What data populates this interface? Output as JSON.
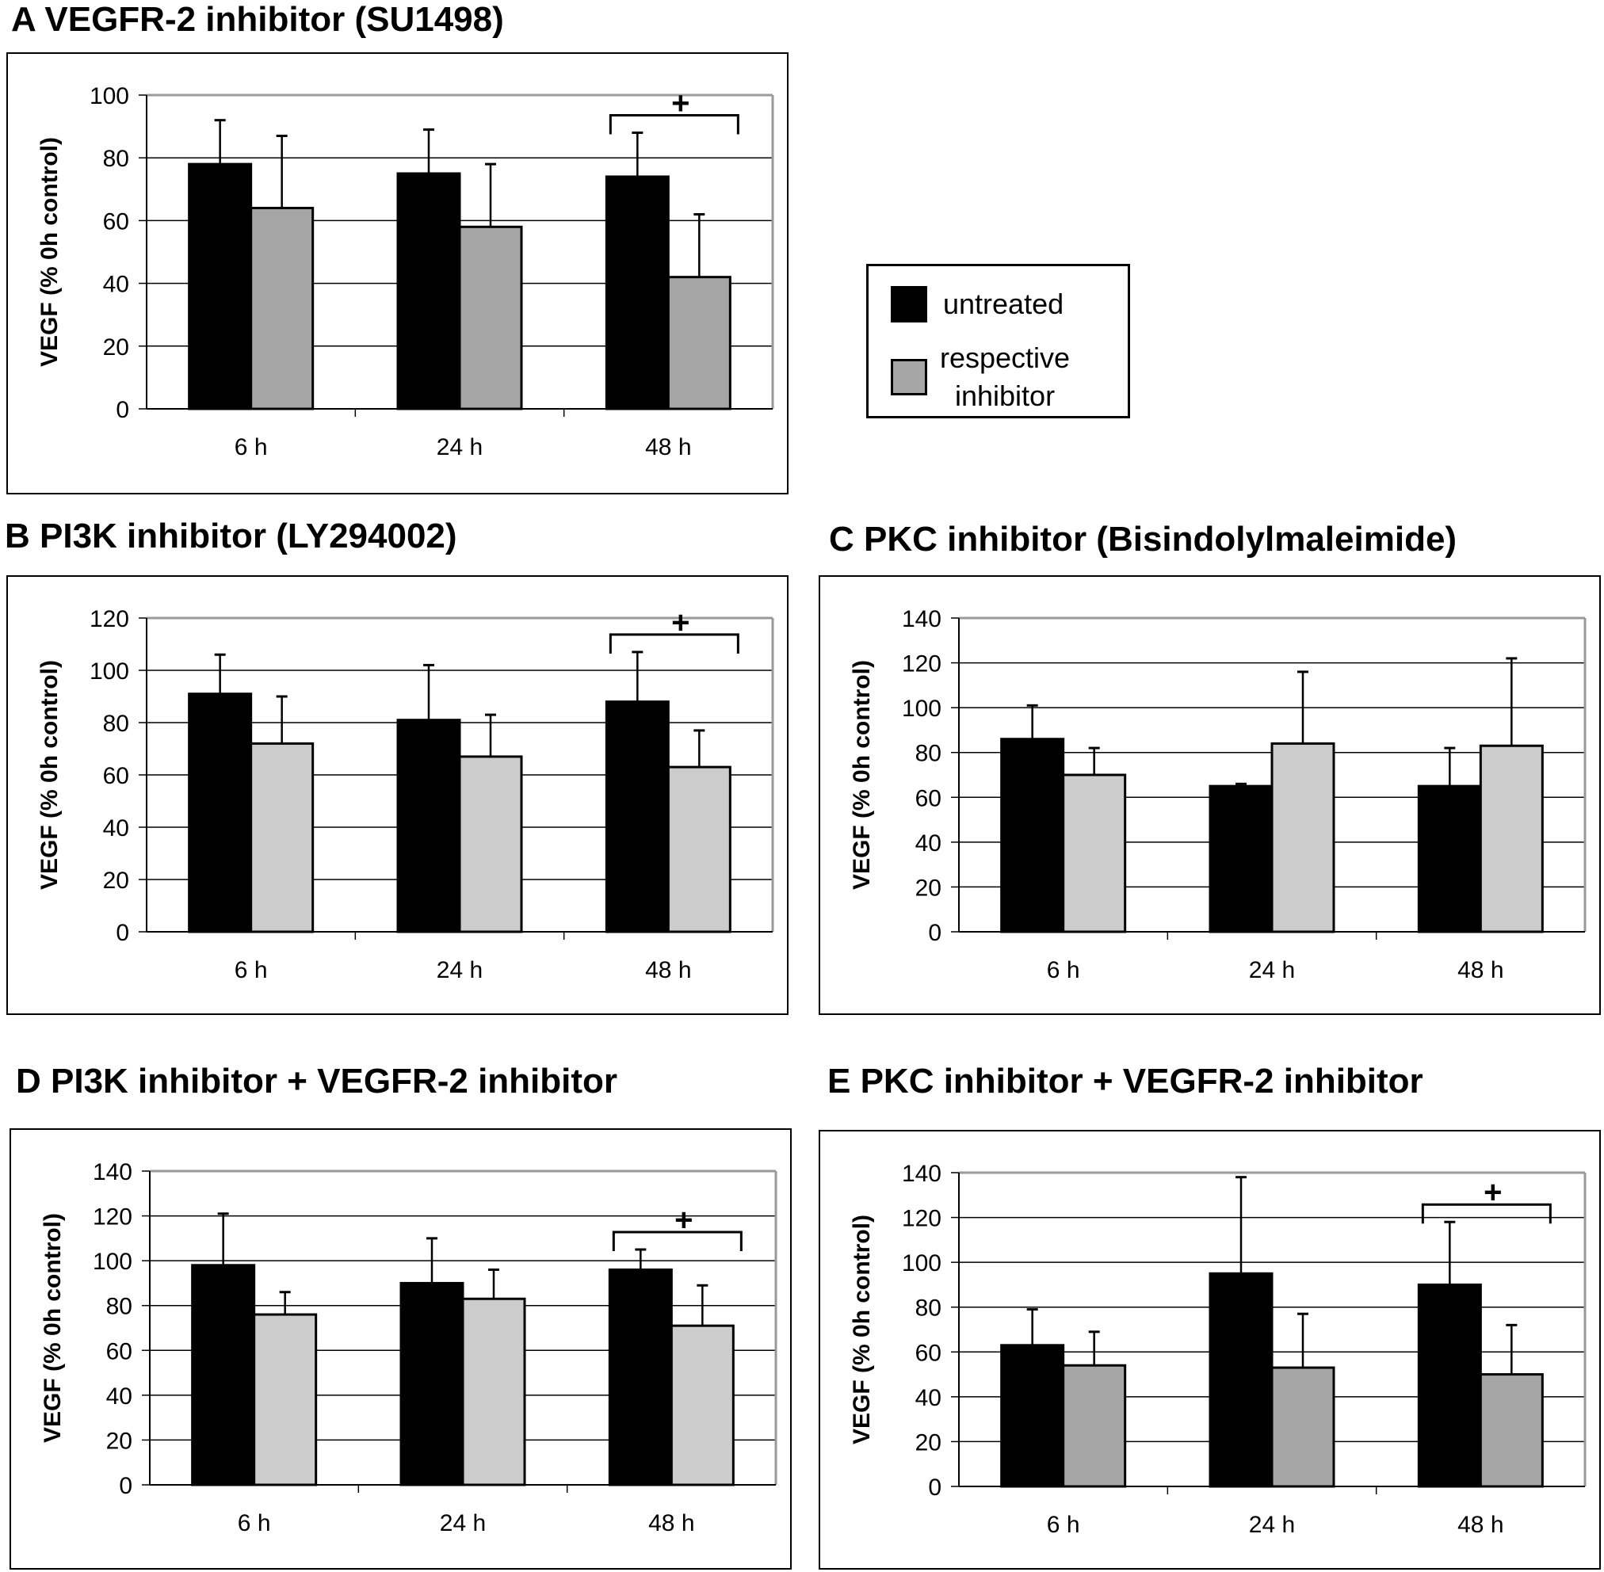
{
  "figure": {
    "legend": {
      "items": [
        {
          "label": "untreated",
          "color": "#000000"
        },
        {
          "label": "respective inhibitor",
          "line1": "respective",
          "line2": "inhibitor",
          "color": "#a6a6a6"
        }
      ]
    },
    "significance_marker": "+"
  },
  "chart_data": [
    {
      "id": "A",
      "type": "bar",
      "title": "A  VEGFR-2 inhibitor (SU1498)",
      "xlabel": "",
      "ylabel": "VEGF (% 0h control)",
      "categories": [
        "6 h",
        "24 h",
        "48 h"
      ],
      "ylim": [
        0,
        100
      ],
      "yticks": [
        "0",
        "20",
        "40",
        "60",
        "80",
        "100"
      ],
      "grid": true,
      "inhibitor_color": "#a6a6a6",
      "series": [
        {
          "name": "untreated",
          "values": [
            78,
            75,
            74
          ],
          "errors": [
            14,
            14,
            14
          ]
        },
        {
          "name": "respective inhibitor",
          "values": [
            64,
            58,
            42
          ],
          "errors": [
            23,
            20,
            20
          ]
        }
      ],
      "significance": [
        {
          "category": "48 h",
          "label": "+"
        }
      ]
    },
    {
      "id": "B",
      "type": "bar",
      "title": "B  PI3K inhibitor (LY294002)",
      "xlabel": "",
      "ylabel": "VEGF (% 0h control)",
      "categories": [
        "6 h",
        "24 h",
        "48 h"
      ],
      "ylim": [
        0,
        120
      ],
      "yticks": [
        "0",
        "20",
        "40",
        "60",
        "80",
        "100",
        "120"
      ],
      "grid": true,
      "inhibitor_color": "#cccccc",
      "series": [
        {
          "name": "untreated",
          "values": [
            91,
            81,
            88
          ],
          "errors": [
            15,
            21,
            19
          ]
        },
        {
          "name": "respective inhibitor",
          "values": [
            72,
            67,
            63
          ],
          "errors": [
            18,
            16,
            14
          ]
        }
      ],
      "significance": [
        {
          "category": "48 h",
          "label": "+"
        }
      ]
    },
    {
      "id": "C",
      "type": "bar",
      "title": "C  PKC inhibitor (Bisindolylmaleimide)",
      "xlabel": "",
      "ylabel": "VEGF (% 0h control)",
      "categories": [
        "6 h",
        "24 h",
        "48 h"
      ],
      "ylim": [
        0,
        140
      ],
      "yticks": [
        "0",
        "20",
        "40",
        "60",
        "80",
        "100",
        "120",
        "140"
      ],
      "grid": true,
      "inhibitor_color": "#cccccc",
      "series": [
        {
          "name": "untreated",
          "values": [
            86,
            65,
            65
          ],
          "errors": [
            15,
            1,
            17
          ]
        },
        {
          "name": "respective inhibitor",
          "values": [
            70,
            84,
            83
          ],
          "errors": [
            12,
            32,
            39
          ]
        }
      ],
      "significance": []
    },
    {
      "id": "D",
      "type": "bar",
      "title": "D PI3K inhibitor + VEGFR-2 inhibitor",
      "xlabel": "",
      "ylabel": "VEGF (% 0h control)",
      "categories": [
        "6 h",
        "24 h",
        "48 h"
      ],
      "ylim": [
        0,
        140
      ],
      "yticks": [
        "0",
        "20",
        "40",
        "60",
        "80",
        "100",
        "120",
        "140"
      ],
      "grid": true,
      "inhibitor_color": "#cccccc",
      "series": [
        {
          "name": "untreated",
          "values": [
            98,
            90,
            96
          ],
          "errors": [
            23,
            20,
            9
          ]
        },
        {
          "name": "respective inhibitor",
          "values": [
            76,
            83,
            71
          ],
          "errors": [
            10,
            13,
            18
          ]
        }
      ],
      "significance": [
        {
          "category": "48 h",
          "label": "+"
        }
      ]
    },
    {
      "id": "E",
      "type": "bar",
      "title": "E  PKC inhibitor + VEGFR-2 inhibitor",
      "xlabel": "",
      "ylabel": "VEGF (% 0h control)",
      "categories": [
        "6 h",
        "24 h",
        "48 h"
      ],
      "ylim": [
        0,
        140
      ],
      "yticks": [
        "0",
        "20",
        "40",
        "60",
        "80",
        "100",
        "120",
        "140"
      ],
      "grid": true,
      "inhibitor_color": "#a6a6a6",
      "series": [
        {
          "name": "untreated",
          "values": [
            63,
            95,
            90
          ],
          "errors": [
            16,
            43,
            28
          ]
        },
        {
          "name": "respective inhibitor",
          "values": [
            54,
            53,
            50
          ],
          "errors": [
            15,
            24,
            22
          ]
        }
      ],
      "significance": [
        {
          "category": "48 h",
          "label": "+"
        }
      ]
    }
  ]
}
